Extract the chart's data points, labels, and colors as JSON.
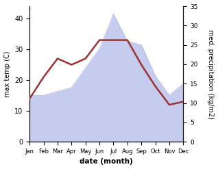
{
  "months": [
    "Jan",
    "Feb",
    "Mar",
    "Apr",
    "May",
    "Jun",
    "Jul",
    "Aug",
    "Sep",
    "Oct",
    "Nov",
    "Dec"
  ],
  "temp_C": [
    14,
    21,
    27,
    25,
    27,
    33,
    33,
    33,
    25,
    18,
    12,
    13
  ],
  "precip_mm": [
    12,
    12,
    13,
    14,
    19,
    24,
    33,
    26,
    25,
    17,
    12,
    15
  ],
  "temp_color": "#993333",
  "precip_fill_color": "#c5ccee",
  "precip_edge_color": "#aab0dd",
  "ylabel_left": "max temp (C)",
  "ylabel_right": "med. precipitation (kg/m2)",
  "xlabel": "date (month)",
  "ylim_left": [
    0,
    44
  ],
  "ylim_right": [
    0,
    35
  ],
  "yticks_left": [
    0,
    10,
    20,
    30,
    40
  ],
  "yticks_right": [
    0,
    5,
    10,
    15,
    20,
    25,
    30,
    35
  ],
  "temp_linewidth": 1.8,
  "background_color": "#ffffff"
}
